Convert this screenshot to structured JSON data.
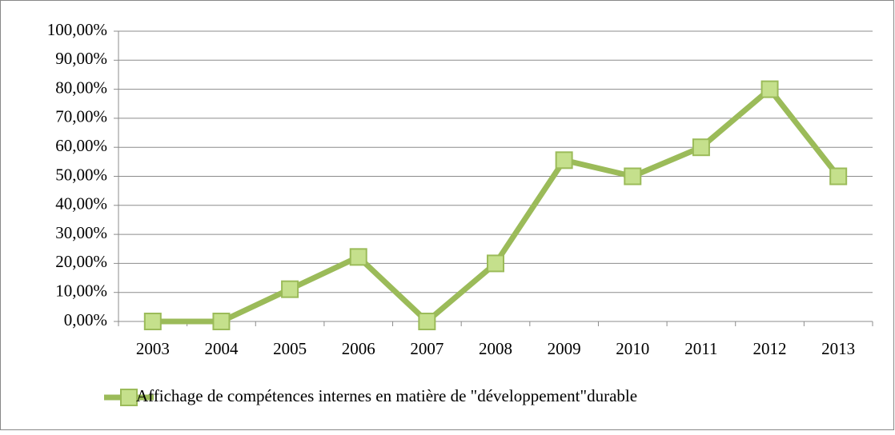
{
  "chart_data": {
    "type": "line",
    "categories": [
      "2003",
      "2004",
      "2005",
      "2006",
      "2007",
      "2008",
      "2009",
      "2010",
      "2011",
      "2012",
      "2013"
    ],
    "series": [
      {
        "name": "Affichage de compétences internes en matière de \"développement\"durable",
        "color": "#9bbb59",
        "marker_fill": "#c5e08c",
        "values": [
          0,
          0,
          11.11,
          22.22,
          0,
          20,
          55.56,
          50,
          60,
          80,
          50
        ]
      }
    ],
    "ylim": [
      0,
      100
    ],
    "yticks": [
      {
        "value": 0,
        "label": "0,00%"
      },
      {
        "value": 10,
        "label": "10,00%"
      },
      {
        "value": 20,
        "label": "20,00%"
      },
      {
        "value": 30,
        "label": "30,00%"
      },
      {
        "value": 40,
        "label": "40,00%"
      },
      {
        "value": 50,
        "label": "50,00%"
      },
      {
        "value": 60,
        "label": "60,00%"
      },
      {
        "value": 70,
        "label": "70,00%"
      },
      {
        "value": 80,
        "label": "80,00%"
      },
      {
        "value": 90,
        "label": "90,00%"
      },
      {
        "value": 100,
        "label": "100,00%"
      }
    ],
    "grid": true,
    "legend": "bottom"
  }
}
